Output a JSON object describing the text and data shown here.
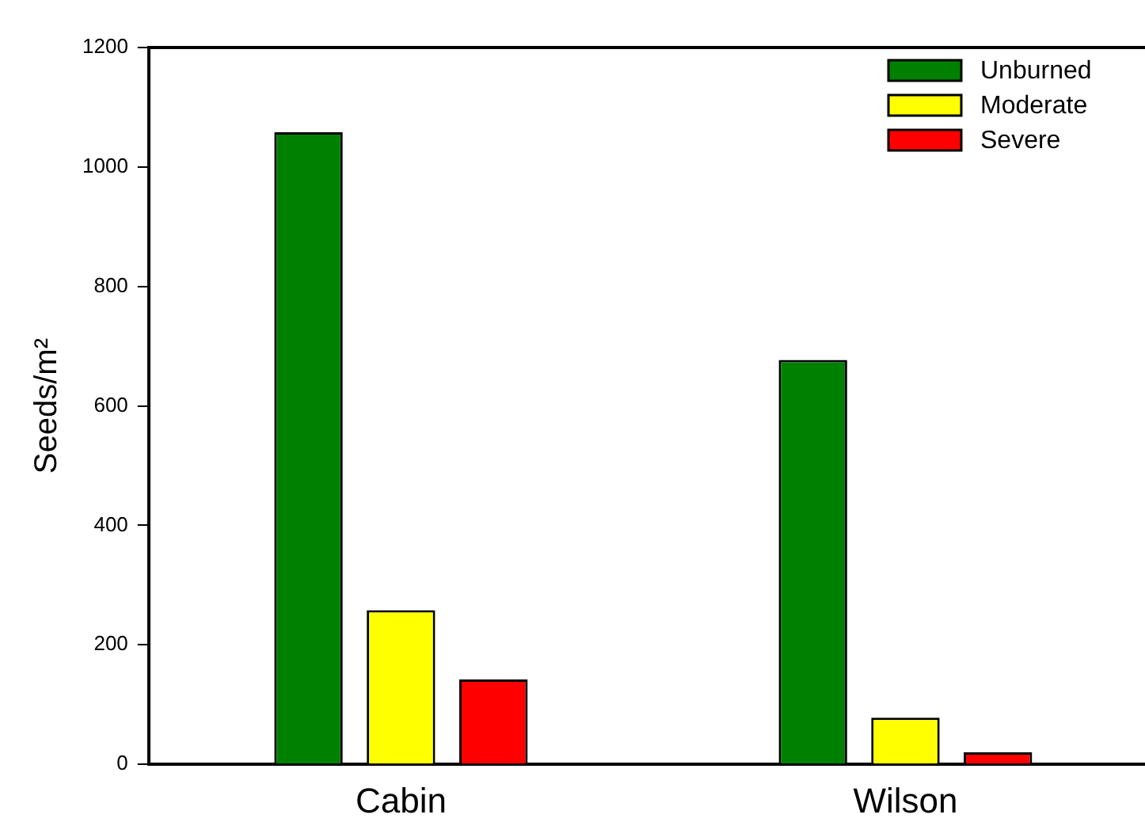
{
  "chart_data": {
    "type": "bar",
    "ylabel": "Seeds/m²",
    "categories": [
      "Cabin",
      "Wilson"
    ],
    "series": [
      {
        "name": "Unburned",
        "color": "#008000",
        "values": [
          1058,
          677
        ]
      },
      {
        "name": "Moderate",
        "color": "#ffff00",
        "values": [
          258,
          78
        ]
      },
      {
        "name": "Severe",
        "color": "#ff0000",
        "values": [
          142,
          20
        ]
      }
    ],
    "ylim": [
      0,
      1200
    ],
    "yticks": [
      0,
      200,
      400,
      600,
      800,
      1000,
      1200
    ],
    "grid": false,
    "legend": "top right"
  }
}
